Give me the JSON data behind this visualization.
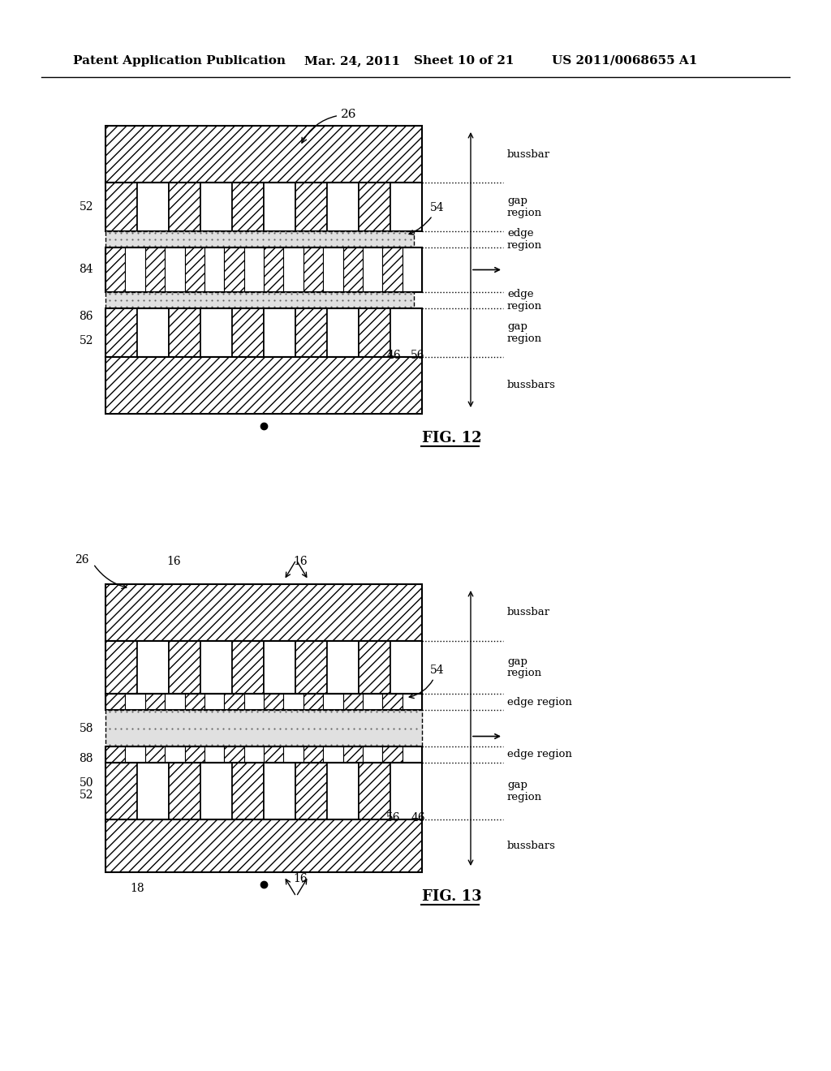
{
  "bg_color": "#ffffff",
  "header_text": "Patent Application Publication",
  "header_date": "Mar. 24, 2011",
  "header_sheet": "Sheet 10 of 21",
  "header_patent": "US 2011/0068655 A1",
  "fig12_label": "FIG. 12",
  "fig13_label": "FIG. 13",
  "hatch_color": "#000000",
  "line_color": "#000000",
  "dotted_color": "#000000"
}
